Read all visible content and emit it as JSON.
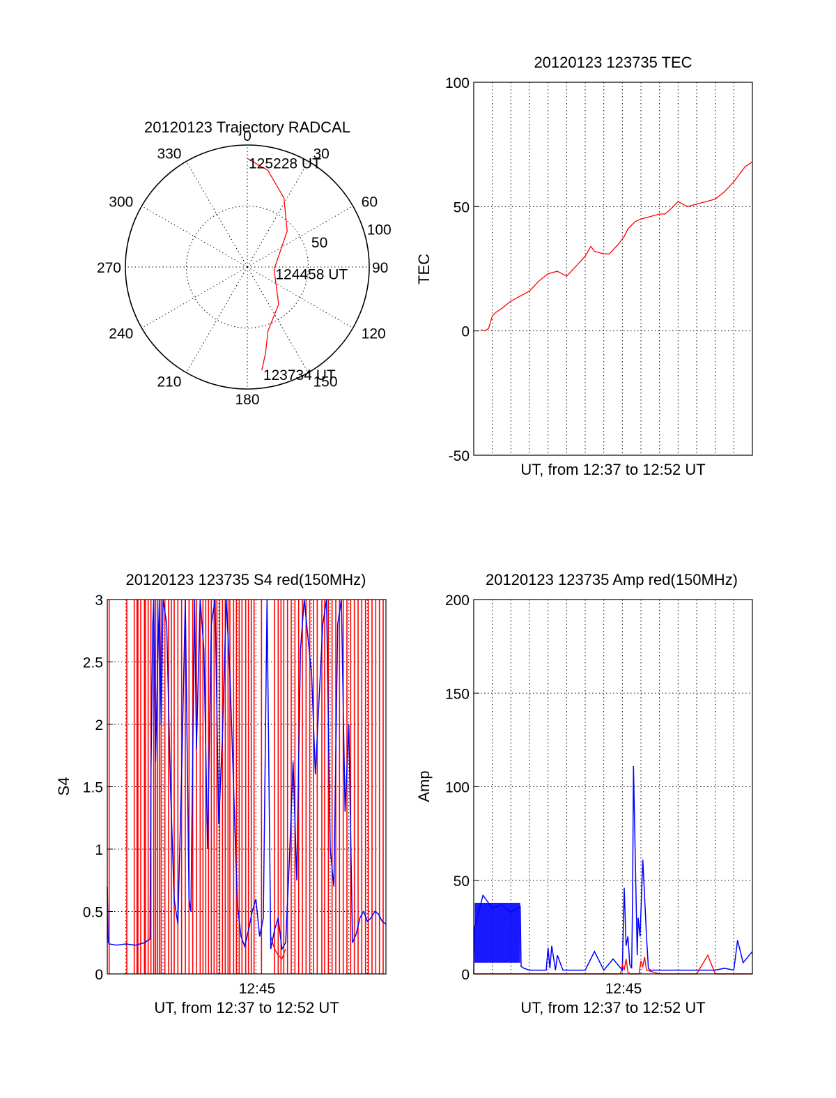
{
  "chart_data": [
    {
      "type": "polar",
      "title": "20120123 Trajectory RADCAL",
      "angle_labels": [
        "0",
        "30",
        "60",
        "90",
        "120",
        "150",
        "180",
        "210",
        "240",
        "270",
        "300",
        "330"
      ],
      "radial_labels": [
        "50",
        "100"
      ],
      "radial_range": [
        0,
        100
      ],
      "grid": true,
      "series": [
        {
          "color": "#ff0000",
          "points": [
            {
              "az": 172,
              "r": 85.5
            },
            {
              "az": 168,
              "r": 72
            },
            {
              "az": 162,
              "r": 55
            },
            {
              "az": 140,
              "r": 40
            },
            {
              "az": 95,
              "r": 22
            },
            {
              "az": 48,
              "r": 44
            },
            {
              "az": 28,
              "r": 64
            },
            {
              "az": 12,
              "r": 81
            },
            {
              "az": 0,
              "r": 89
            }
          ]
        }
      ],
      "annotations": [
        {
          "text": "125228 UT",
          "az": 0,
          "r": 89
        },
        {
          "text": "124458 UT",
          "az": 95,
          "r": 22
        },
        {
          "text": "123734 UT",
          "az": 172,
          "r": 85.5
        }
      ]
    },
    {
      "type": "line",
      "title": "20120123 123735 TEC",
      "xlabel": "UT, from 12:37 to 12:52 UT",
      "ylabel": "TEC",
      "xlim": [
        0,
        15
      ],
      "ylim": [
        -50,
        100
      ],
      "yticks": [
        "-50",
        "0",
        "50",
        "100"
      ],
      "grid": true,
      "series": [
        {
          "color": "#ff0000",
          "x": [
            0.4,
            0.6,
            0.8,
            1.0,
            1.2,
            1.5,
            2.0,
            2.5,
            3.0,
            3.5,
            4.0,
            4.5,
            5.0,
            5.5,
            6.0,
            6.3,
            6.5,
            7.0,
            7.3,
            7.8,
            8.1,
            8.3,
            8.7,
            9.0,
            9.5,
            10.0,
            10.3,
            10.6,
            11.0,
            11.5,
            12.0,
            12.5,
            13.0,
            13.5,
            14.0,
            14.3,
            14.6,
            15.0
          ],
          "y": [
            0.5,
            0,
            1,
            6,
            7.5,
            9,
            12,
            14,
            16,
            20,
            23,
            24,
            22,
            26,
            30,
            34,
            32,
            31,
            31,
            35,
            38,
            41,
            44,
            45,
            46,
            47,
            47,
            49,
            52,
            50,
            51,
            52,
            53,
            56,
            60,
            63,
            66,
            68
          ]
        }
      ]
    },
    {
      "type": "line",
      "title": "20120123 123735 S4 red(150MHz)",
      "xlabel": "UT, from 12:37 to 12:52 UT",
      "ylabel": "S4",
      "xlim": [
        0,
        15
      ],
      "ylim": [
        0,
        3
      ],
      "xticks": [
        "12:45"
      ],
      "yticks": [
        "0",
        "0.5",
        "1",
        "1.5",
        "2",
        "2.5",
        "3"
      ],
      "grid": true,
      "series": [
        {
          "color": "#0000ff",
          "x": [
            0.0,
            0.02,
            0.04,
            0.06,
            0.08,
            0.1,
            0.5,
            1.0,
            1.5,
            2.0,
            2.3,
            2.35,
            2.45,
            2.5,
            2.6,
            2.7,
            2.8,
            2.9,
            3.0,
            3.2,
            3.4,
            3.6,
            3.8,
            4.0,
            4.2,
            4.4,
            4.5,
            4.7,
            4.8,
            5.0,
            5.2,
            5.4,
            5.6,
            5.8,
            6.0,
            6.2,
            6.4,
            6.6,
            6.8,
            7.0,
            7.2,
            7.4,
            7.6,
            7.8,
            8.0,
            8.2,
            8.4,
            8.6,
            8.8,
            9.0,
            9.2,
            9.4,
            9.6,
            9.8,
            10.0,
            10.2,
            10.4,
            10.6,
            10.8,
            11.0,
            11.2,
            11.4,
            11.6,
            11.8,
            12.0,
            12.2,
            12.4,
            12.6,
            12.8,
            13.0,
            13.2,
            13.4,
            13.6,
            13.8,
            14.0,
            14.2,
            14.4,
            14.6,
            14.8,
            15.0
          ],
          "y": [
            0.7,
            0.55,
            0.3,
            0.25,
            0.25,
            0.24,
            0.23,
            0.24,
            0.23,
            0.25,
            0.28,
            1.6,
            2.8,
            3.0,
            1.7,
            2.4,
            3.0,
            2.0,
            3.0,
            2.8,
            1.5,
            0.6,
            0.4,
            1.6,
            3.0,
            0.6,
            0.5,
            3.0,
            1.8,
            3.0,
            2.6,
            1.0,
            2.8,
            3.0,
            1.2,
            1.9,
            3.0,
            2.4,
            1.5,
            0.55,
            0.3,
            0.22,
            0.35,
            0.5,
            0.6,
            0.3,
            0.45,
            3.0,
            0.2,
            0.35,
            0.45,
            0.2,
            0.25,
            0.9,
            1.7,
            0.75,
            2.6,
            3.0,
            2.7,
            2.4,
            1.6,
            2.2,
            2.8,
            3.0,
            1.0,
            0.7,
            2.8,
            3.0,
            1.3,
            2.0,
            0.25,
            0.32,
            0.45,
            0.5,
            0.42,
            0.45,
            0.5,
            0.48,
            0.42,
            0.4
          ]
        },
        {
          "color": "#ff0000",
          "spike_x": [
            0.1,
            1.05,
            1.45,
            1.6,
            1.65,
            1.8,
            2.0,
            2.05,
            2.2,
            2.35,
            2.5,
            2.6,
            2.7,
            2.8,
            2.9,
            3.1,
            3.3,
            3.45,
            3.6,
            3.8,
            4.0,
            4.2,
            4.4,
            4.6,
            4.8,
            5.0,
            5.15,
            5.3,
            5.45,
            5.6,
            5.75,
            5.9,
            6.05,
            6.2,
            6.35,
            6.5,
            6.6,
            6.8,
            6.95,
            7.1,
            7.25,
            7.45,
            7.6,
            7.75,
            7.9,
            8.3,
            9.0,
            9.2,
            9.35,
            9.5,
            9.7,
            9.9,
            10.1,
            10.3,
            10.5,
            10.7,
            10.9,
            11.1,
            11.3,
            11.55,
            11.7,
            11.9,
            12.1,
            12.3,
            12.5,
            12.7,
            12.9,
            13.1,
            13.3,
            13.5,
            13.7,
            13.9,
            14.05,
            14.25,
            14.45,
            14.65,
            14.85
          ],
          "base": {
            "x": [
              8.8,
              9.0,
              9.2,
              9.4,
              9.6
            ],
            "y": [
              0.3,
              0.2,
              0.15,
              0.12,
              0.2
            ]
          }
        }
      ]
    },
    {
      "type": "line",
      "title": "20120123 123735 Amp red(150MHz)",
      "xlabel": "UT, from 12:37 to 12:52 UT",
      "ylabel": "Amp",
      "xlim": [
        0,
        15
      ],
      "ylim": [
        0,
        200
      ],
      "xticks": [
        "12:45"
      ],
      "yticks": [
        "0",
        "50",
        "100",
        "150",
        "200"
      ],
      "grid": true,
      "series": [
        {
          "color": "#0000ff",
          "x": [
            0.0,
            0.05,
            0.5,
            1.0,
            1.5,
            2.0,
            2.5,
            2.55,
            2.7,
            3.0,
            3.5,
            3.9,
            4.0,
            4.1,
            4.2,
            4.4,
            4.5,
            4.8,
            5.0,
            5.2,
            5.5,
            6.0,
            6.5,
            7.0,
            7.5,
            8.0,
            8.1,
            8.2,
            8.3,
            8.4,
            8.5,
            8.55,
            8.6,
            8.7,
            8.8,
            8.85,
            8.95,
            9.1,
            9.3,
            9.4,
            9.5,
            9.6,
            10.0,
            11.0,
            12.0,
            13.0,
            13.5,
            14.0,
            14.2,
            14.5,
            15.0
          ],
          "y": [
            0,
            25,
            42,
            35,
            37,
            33,
            36,
            4,
            3,
            2,
            2,
            2,
            14,
            3,
            15,
            2,
            10,
            2,
            2,
            2,
            2,
            2,
            12,
            2,
            8,
            2,
            46,
            15,
            20,
            5,
            3,
            40,
            111,
            60,
            10,
            30,
            20,
            61,
            20,
            3,
            2,
            2,
            2,
            2,
            2,
            2,
            3,
            2,
            18,
            6,
            12
          ]
        },
        {
          "color": "#ff0000",
          "x": [
            0.0,
            1.0,
            2.0,
            3.0,
            4.0,
            5.0,
            6.0,
            7.0,
            7.9,
            8.0,
            8.1,
            8.2,
            8.3,
            8.4,
            8.9,
            9.0,
            9.1,
            9.2,
            9.3,
            10.0,
            11.0,
            12.0,
            12.6,
            13.0,
            14.0,
            15.0
          ],
          "y": [
            0,
            0,
            0,
            0,
            0,
            0,
            0,
            0,
            0,
            5,
            2,
            8,
            1,
            0,
            0,
            7,
            4,
            9,
            2,
            0,
            0,
            0,
            10,
            0,
            0,
            0
          ]
        }
      ]
    }
  ]
}
